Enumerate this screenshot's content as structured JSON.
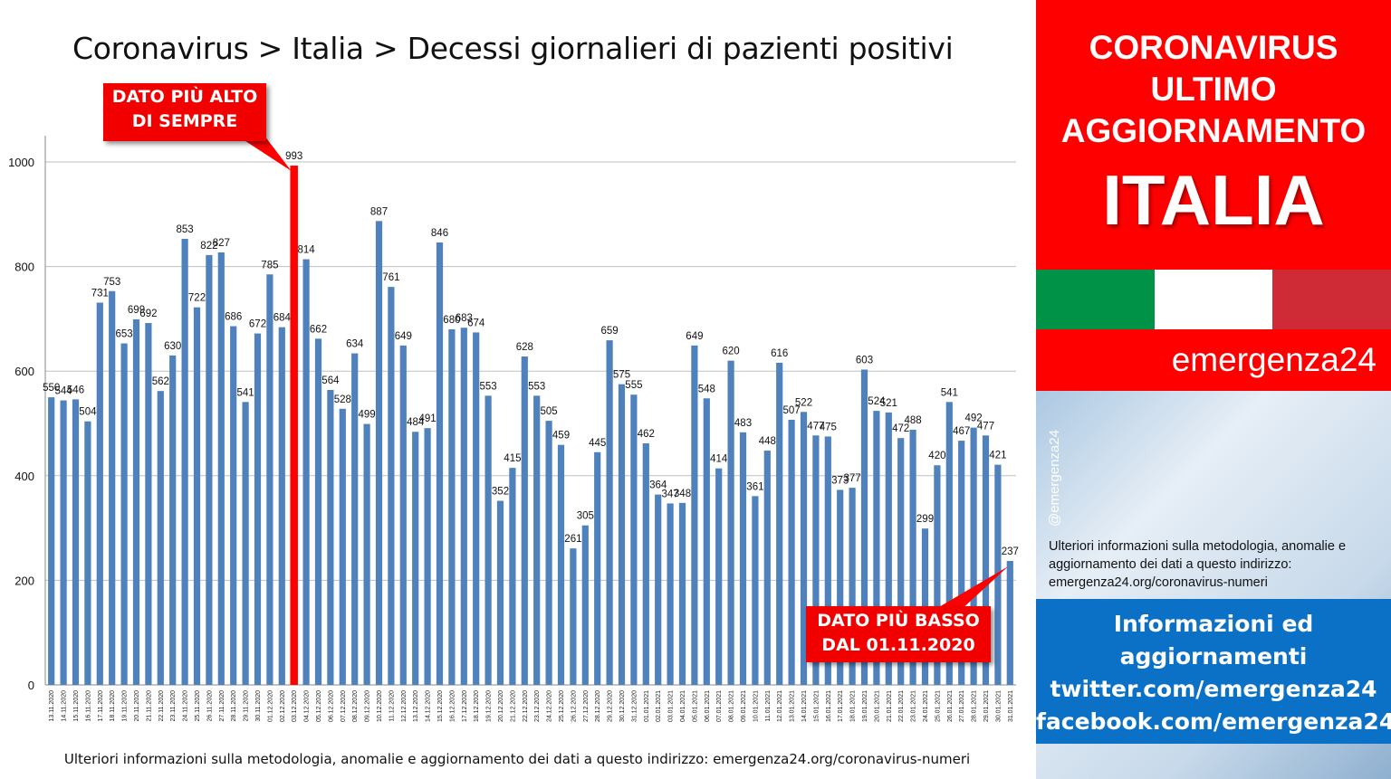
{
  "title": "Coronavirus > Italia > Decessi giornalieri di pazienti positivi",
  "callouts": {
    "high": [
      "DATO PIÙ ALTO",
      "DI SEMPRE"
    ],
    "low": [
      "DATO PIÙ BASSO",
      "DAL 01.11.2020"
    ]
  },
  "footnote": "Ulteriori informazioni sulla metodologia, anomalie e aggiornamento dei dati a questo indirizzo: emergenza24.org/coronavirus-numeri",
  "panel": {
    "line1": "CORONAVIRUS",
    "line2": "ULTIMO",
    "line3": "AGGIORNAMENTO",
    "country": "ITALIA",
    "brand": "emergenza24",
    "handle": "@emergenza24",
    "note": "Ulteriori informazioni sulla metodologia, anomalie e aggiornamento dei dati a questo indirizzo: emergenza24.org/coronavirus-numeri",
    "info_lines": [
      "Informazioni ed",
      "aggiornamenti",
      "twitter.com/emergenza24",
      "facebook.com/emergenza24"
    ]
  },
  "colors": {
    "bar": "#4f81bd",
    "highlight": "#ff0000",
    "grid": "#bfbfbf",
    "flag_green": "#009246",
    "flag_white": "#ffffff",
    "flag_red": "#ce2b37"
  },
  "chart_data": {
    "type": "bar",
    "highlight_category": "03.12.2020",
    "ylim": [
      0,
      1000
    ],
    "yticks": [
      0,
      200,
      400,
      600,
      800,
      1000
    ],
    "grid": true,
    "categories": [
      "13.11.2020",
      "14.11.2020",
      "15.11.2020",
      "16.11.2020",
      "17.11.2020",
      "18.11.2020",
      "19.11.2020",
      "20.11.2020",
      "21.11.2020",
      "22.11.2020",
      "23.11.2020",
      "24.11.2020",
      "25.11.2020",
      "26.11.2020",
      "27.11.2020",
      "28.11.2020",
      "29.11.2020",
      "30.11.2020",
      "01.12.2020",
      "02.12.2020",
      "03.12.2020",
      "04.12.2020",
      "05.12.2020",
      "06.12.2020",
      "07.12.2020",
      "08.12.2020",
      "09.12.2020",
      "10.12.2020",
      "11.12.2020",
      "12.12.2020",
      "13.12.2020",
      "14.12.2020",
      "15.12.2020",
      "16.12.2020",
      "17.12.2020",
      "18.12.2020",
      "19.12.2020",
      "20.12.2020",
      "21.12.2020",
      "22.12.2020",
      "23.12.2020",
      "24.12.2020",
      "25.12.2020",
      "26.12.2020",
      "27.12.2020",
      "28.12.2020",
      "29.12.2020",
      "30.12.2020",
      "31.12.2020",
      "01.01.2021",
      "02.01.2021",
      "03.01.2021",
      "04.01.2021",
      "05.01.2021",
      "06.01.2021",
      "07.01.2021",
      "08.01.2021",
      "09.01.2021",
      "10.01.2021",
      "11.01.2021",
      "12.01.2021",
      "13.01.2021",
      "14.01.2021",
      "15.01.2021",
      "16.01.2021",
      "17.01.2021",
      "18.01.2021",
      "19.01.2021",
      "20.01.2021",
      "21.01.2021",
      "22.01.2021",
      "23.01.2021",
      "24.01.2021",
      "25.01.2021",
      "26.01.2021",
      "27.01.2021",
      "28.01.2021",
      "29.01.2021",
      "30.01.2021",
      "31.01.2021"
    ],
    "values": [
      550,
      544,
      546,
      504,
      731,
      753,
      653,
      699,
      692,
      562,
      630,
      853,
      722,
      822,
      827,
      686,
      541,
      672,
      785,
      684,
      993,
      814,
      662,
      564,
      528,
      634,
      499,
      887,
      761,
      649,
      484,
      491,
      846,
      680,
      683,
      674,
      553,
      352,
      415,
      628,
      553,
      505,
      459,
      261,
      305,
      445,
      659,
      575,
      555,
      462,
      364,
      347,
      348,
      649,
      548,
      414,
      620,
      483,
      361,
      448,
      616,
      507,
      522,
      477,
      475,
      373,
      377,
      603,
      524,
      521,
      472,
      488,
      299,
      420,
      541,
      467,
      492,
      477,
      421,
      237
    ],
    "labels": [
      "550",
      "544",
      "546",
      "504",
      "731",
      "753",
      "653",
      "699",
      "692",
      "562",
      "630",
      "853",
      "722",
      "822",
      "827",
      "686",
      "541",
      "672",
      "785",
      "684",
      "993",
      "814",
      "662",
      "564",
      "528",
      "634",
      "499",
      "887",
      "761",
      "649",
      "484",
      "491",
      "846",
      "680",
      "683",
      "674",
      "553",
      "352",
      "415",
      "628",
      "553",
      "505",
      "459",
      "261",
      "305",
      "445",
      "659",
      "575",
      "555",
      "462",
      "364",
      "347",
      "348",
      "649",
      "548",
      "414",
      "620",
      "483",
      "361",
      "448",
      "616",
      "507",
      "522",
      "477",
      "475",
      "373",
      "377",
      "603",
      "524",
      "521",
      "472",
      "488",
      "299",
      "420",
      "541",
      "467",
      "492",
      "477",
      "421",
      "237"
    ]
  }
}
